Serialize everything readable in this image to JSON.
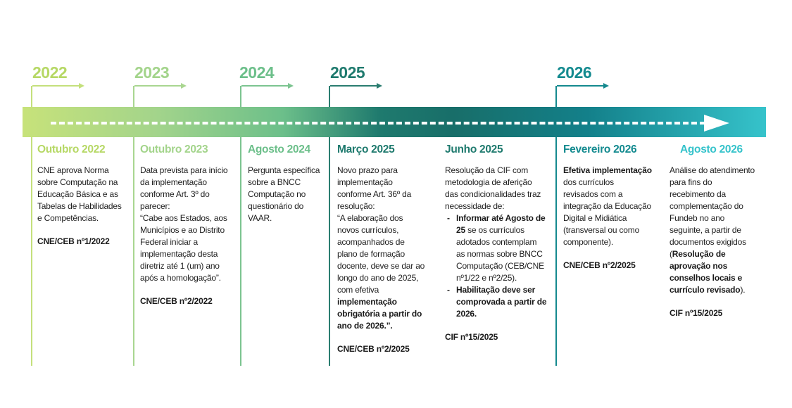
{
  "colors": {
    "y2022": "#b6d865",
    "y2023": "#a3d48b",
    "y2024": "#6cbf8a",
    "y2025": "#1f7a6e",
    "y2026": "#138a8f",
    "bar_start": "#c7e27a",
    "bar_end": "#36c3cb"
  },
  "years": [
    "2022",
    "2023",
    "2024",
    "2025",
    "2026"
  ],
  "events": [
    {
      "date": "Outubro 2022",
      "desc": [
        "CNE aprova Norma",
        "sobre Computação na",
        "Educação Básica e as",
        "Tabelas de Habilidades",
        "e Competências."
      ],
      "ref": "CNE/CEB nº1/2022"
    },
    {
      "date": "Outubro 2023",
      "desc": [
        "Data prevista para início",
        "da implementação",
        "conforme Art. 3º do",
        "parecer:",
        "“Cabe aos Estados, aos",
        "Municípios e ao Distrito",
        "Federal iniciar a",
        "implementação desta",
        "diretriz até 1 (um) ano",
        "após a homologação”."
      ],
      "ref": "CNE/CEB nº2/2022"
    },
    {
      "date": "Agosto 2024",
      "desc": [
        "Pergunta específica",
        "sobre a BNCC",
        "Computação no",
        "questionário do",
        "VAAR."
      ],
      "ref": ""
    },
    {
      "date": "Março 2025",
      "desc": [
        "Novo prazo para",
        "implementação",
        "conforme Art. 36º da",
        "resolução:",
        "“A elaboração dos",
        "novos currículos,",
        "acompanhados de",
        "plano de formação",
        "docente, deve se dar ao",
        "longo do ano de 2025,",
        "com efetiva"
      ],
      "desc_bold": [
        "implementação",
        "obrigatória a partir do",
        "ano de 2026.”."
      ],
      "ref": "CNE/CEB nº2/2025"
    },
    {
      "date": "Junho 2025",
      "desc": [
        "Resolução da CIF com",
        "metodologia de aferição",
        "das condicionalidades traz",
        "necessidade de:"
      ],
      "bullets": [
        {
          "lines": [
            {
              "text": "Informar até Agosto de",
              "bold": true
            },
            {
              "text": "25",
              "bold": true,
              "tail": " se os currículos"
            },
            {
              "text": "adotados contemplam"
            },
            {
              "text": "as normas sobre BNCC"
            },
            {
              "text": "Computação (CEB/CNE"
            },
            {
              "text": "nº1/22 e nº2/25)."
            }
          ]
        },
        {
          "lines": [
            {
              "text": "Habilitação deve ser",
              "bold": true
            },
            {
              "text": "comprovada a partir de",
              "bold": true
            },
            {
              "text": "2026.",
              "bold": true
            }
          ]
        }
      ],
      "ref": "CIF nº15/2025"
    },
    {
      "date": "Fevereiro 2026",
      "desc_lead_bold": "Efetiva implementação",
      "desc": [
        "dos currículos",
        "revisados com a",
        "integração da Educação",
        "Digital e Midiática",
        "(transversal ou como",
        "componente)."
      ],
      "ref": "CNE/CEB nº2/2025"
    },
    {
      "date": "Agosto 2026",
      "desc": [
        "Análise do atendimento",
        "para fins do",
        "recebimento da",
        "complementação do",
        "Fundeb no ano",
        "seguinte, a partir de",
        "documentos exigidos"
      ],
      "desc_mixed": [
        {
          "pre": "(",
          "bold": "Resolução de"
        },
        {
          "bold": "aprovação nos"
        },
        {
          "bold": "conselhos locais e"
        },
        {
          "bold": "currículo revisado",
          "post": ")."
        }
      ],
      "ref": "CIF nº15/2025"
    }
  ]
}
